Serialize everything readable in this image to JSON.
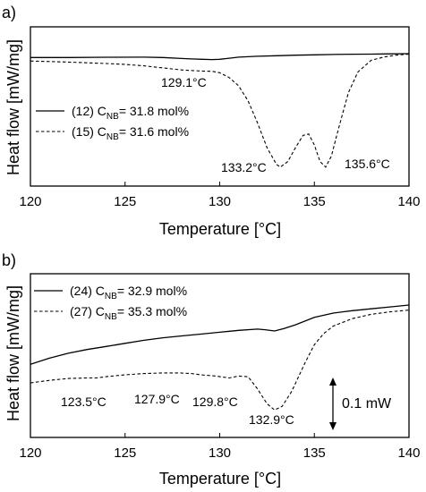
{
  "chart_data": [
    {
      "panel": "a)",
      "type": "line",
      "xlabel": "Temperature [°C]",
      "ylabel": "Heat flow [mW/mg]",
      "xlim": [
        120,
        140
      ],
      "xticks": [
        120,
        125,
        130,
        135,
        140
      ],
      "ylim": [
        0,
        1
      ],
      "y_ticks_shown": false,
      "grid": false,
      "legend_position": "middle-left",
      "series": [
        {
          "legend_prefix": "(12) C",
          "legend_sub": "NB",
          "legend_suffix": "= 31.8 mol%",
          "style": "solid",
          "x": [
            120,
            122,
            124,
            126,
            127,
            128,
            128.5,
            129.1,
            129.6,
            130,
            130.5,
            131,
            132,
            133,
            134,
            135,
            136,
            137,
            138,
            139,
            140
          ],
          "y": [
            0.855,
            0.855,
            0.857,
            0.858,
            0.855,
            0.848,
            0.845,
            0.842,
            0.84,
            0.842,
            0.85,
            0.858,
            0.864,
            0.868,
            0.872,
            0.875,
            0.877,
            0.879,
            0.88,
            0.882,
            0.883
          ]
        },
        {
          "legend_prefix": "(15) C",
          "legend_sub": "NB",
          "legend_suffix": "= 31.6 mol%",
          "style": "dashed",
          "x": [
            120,
            121,
            122,
            123,
            124,
            125,
            126,
            127,
            128,
            129,
            129.6,
            130,
            130.5,
            131,
            131.5,
            132,
            132.5,
            133,
            133.2,
            133.6,
            134,
            134.4,
            134.7,
            135,
            135.3,
            135.6,
            135.9,
            136.3,
            136.8,
            137.3,
            138,
            138.7,
            139.3,
            140
          ],
          "y": [
            0.83,
            0.826,
            0.822,
            0.817,
            0.812,
            0.805,
            0.795,
            0.78,
            0.765,
            0.757,
            0.755,
            0.745,
            0.71,
            0.65,
            0.54,
            0.38,
            0.2,
            0.08,
            0.06,
            0.1,
            0.2,
            0.29,
            0.3,
            0.22,
            0.1,
            0.06,
            0.14,
            0.35,
            0.6,
            0.75,
            0.835,
            0.86,
            0.872,
            0.88
          ]
        }
      ],
      "annotations": [
        {
          "text": "129.1°C",
          "x": 129.1
        },
        {
          "text": "133.2°C",
          "x": 133.2
        },
        {
          "text": "135.6°C",
          "x": 135.6
        }
      ]
    },
    {
      "panel": "b)",
      "type": "line",
      "xlabel": "Temperature [°C]",
      "ylabel": "Heat flow [mW/mg]",
      "xlim": [
        120,
        140
      ],
      "xticks": [
        120,
        125,
        130,
        135,
        140
      ],
      "ylim": [
        0,
        1
      ],
      "y_ticks_shown": false,
      "grid": false,
      "legend_position": "top-left",
      "series": [
        {
          "legend_prefix": "(24) C",
          "legend_sub": "NB",
          "legend_suffix": "= 32.9 mol%",
          "style": "solid",
          "x": [
            120,
            121,
            122,
            123,
            124,
            125,
            126,
            127,
            128,
            129,
            130,
            131,
            132,
            132.4,
            132.9,
            133.4,
            134,
            135,
            136,
            137,
            138,
            139,
            140
          ],
          "y": [
            0.44,
            0.49,
            0.53,
            0.56,
            0.585,
            0.61,
            0.635,
            0.655,
            0.67,
            0.685,
            0.7,
            0.715,
            0.725,
            0.72,
            0.71,
            0.73,
            0.76,
            0.82,
            0.855,
            0.875,
            0.89,
            0.905,
            0.92
          ]
        },
        {
          "legend_prefix": "(27) C",
          "legend_sub": "NB",
          "legend_suffix": "= 35.3 mol%",
          "style": "dashed",
          "x": [
            120,
            121,
            122,
            123,
            123.5,
            124,
            125,
            126,
            127,
            127.9,
            128.5,
            129,
            129.8,
            130.5,
            131,
            131.5,
            132,
            132.5,
            132.9,
            133.3,
            133.8,
            134.5,
            135,
            135.5,
            136,
            137,
            138,
            139,
            140
          ],
          "y": [
            0.29,
            0.31,
            0.325,
            0.33,
            0.33,
            0.34,
            0.355,
            0.365,
            0.37,
            0.37,
            0.365,
            0.355,
            0.345,
            0.33,
            0.345,
            0.34,
            0.24,
            0.12,
            0.07,
            0.1,
            0.22,
            0.45,
            0.6,
            0.69,
            0.75,
            0.81,
            0.845,
            0.865,
            0.88
          ]
        }
      ],
      "annotations": [
        {
          "text": "123.5°C",
          "x": 123.5
        },
        {
          "text": "127.9°C",
          "x": 127.9
        },
        {
          "text": "129.8°C",
          "x": 129.8
        },
        {
          "text": "132.9°C",
          "x": 132.9
        }
      ],
      "scale_bar": "0.1 mW"
    }
  ]
}
